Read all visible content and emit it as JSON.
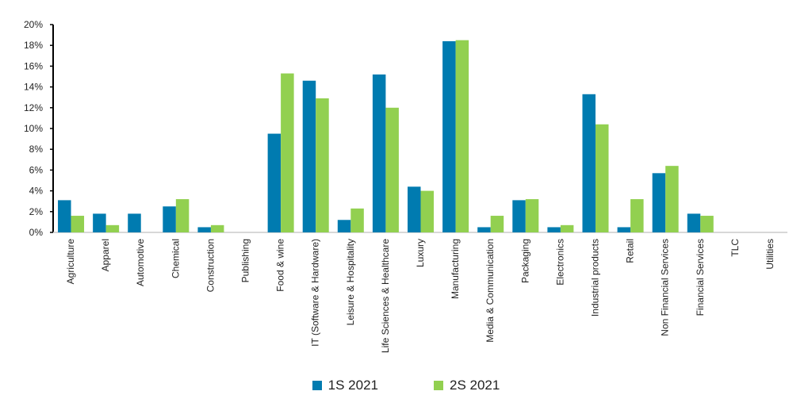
{
  "chart_data": {
    "type": "bar",
    "title": "",
    "xlabel": "",
    "ylabel": "",
    "ylim": [
      0,
      20
    ],
    "yticks": [
      "0%",
      "2%",
      "4%",
      "6%",
      "8%",
      "10%",
      "12%",
      "14%",
      "16%",
      "18%",
      "20%"
    ],
    "categories": [
      "Agriculture",
      "Apparel",
      "Automotive",
      "Chemical",
      "Construction",
      "Publishing",
      "Food & wine",
      "IT (Software & Hardware)",
      "Leisure & Hospitality",
      "Life Sciences & Healthcare",
      "Luxury",
      "Manufacturing",
      "Media & Communication",
      "Packaging",
      "Electronics",
      "Industrial products",
      "Retail",
      "Non Financial Services",
      "Financial Services",
      "TLC",
      "Utilities"
    ],
    "series": [
      {
        "name": "1S 2021",
        "color": "#007BB0",
        "values": [
          3.1,
          1.8,
          1.8,
          2.5,
          0.5,
          0,
          9.5,
          14.6,
          1.2,
          15.2,
          4.4,
          18.4,
          0.5,
          3.1,
          0.5,
          13.3,
          0.5,
          5.7,
          1.8,
          0,
          0
        ]
      },
      {
        "name": "2S 2021",
        "color": "#92D050",
        "values": [
          1.6,
          0.7,
          0,
          3.2,
          0.7,
          0,
          15.3,
          12.9,
          2.3,
          12.0,
          4.0,
          18.5,
          1.6,
          3.2,
          0.7,
          10.4,
          3.2,
          6.4,
          1.6,
          0,
          0
        ]
      }
    ],
    "legend": "bottom",
    "grid": false
  }
}
